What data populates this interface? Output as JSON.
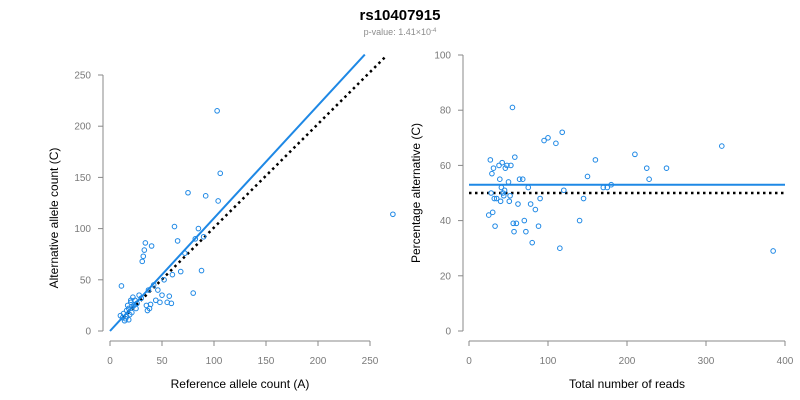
{
  "figure": {
    "title": "rs10407915",
    "subtitle_prefix": "p-value: 1.41×10",
    "subtitle_exponent": "-4"
  },
  "colors": {
    "point": "#1e88e5",
    "fit": "#1e88e5",
    "reference": "#000000"
  },
  "chart_data": [
    {
      "type": "scatter",
      "xlabel": "Reference allele count (A)",
      "ylabel": "Alternative allele count (C)",
      "xlim": [
        0,
        250
      ],
      "ylim": [
        0,
        250
      ],
      "xticks": [
        0,
        50,
        100,
        150,
        200,
        250
      ],
      "yticks": [
        0,
        50,
        100,
        150,
        200,
        250
      ],
      "points": [
        [
          10,
          15
        ],
        [
          11,
          44
        ],
        [
          12,
          13
        ],
        [
          13,
          17
        ],
        [
          14,
          10
        ],
        [
          15,
          12
        ],
        [
          16,
          14
        ],
        [
          16,
          20
        ],
        [
          17,
          25
        ],
        [
          18,
          22
        ],
        [
          18,
          11
        ],
        [
          19,
          16
        ],
        [
          20,
          28
        ],
        [
          20,
          30
        ],
        [
          21,
          18
        ],
        [
          21,
          24
        ],
        [
          22,
          33
        ],
        [
          23,
          25
        ],
        [
          24,
          30
        ],
        [
          25,
          22
        ],
        [
          26,
          27
        ],
        [
          28,
          35
        ],
        [
          30,
          32
        ],
        [
          31,
          68
        ],
        [
          32,
          73
        ],
        [
          33,
          79
        ],
        [
          34,
          86
        ],
        [
          35,
          25
        ],
        [
          36,
          20
        ],
        [
          37,
          40
        ],
        [
          38,
          22
        ],
        [
          39,
          26
        ],
        [
          40,
          83
        ],
        [
          42,
          45
        ],
        [
          44,
          30
        ],
        [
          46,
          40
        ],
        [
          48,
          28
        ],
        [
          50,
          35
        ],
        [
          52,
          50
        ],
        [
          55,
          28
        ],
        [
          57,
          34
        ],
        [
          59,
          27
        ],
        [
          60,
          55
        ],
        [
          62,
          102
        ],
        [
          65,
          88
        ],
        [
          68,
          58
        ],
        [
          72,
          76
        ],
        [
          75,
          135
        ],
        [
          80,
          37
        ],
        [
          82,
          90
        ],
        [
          85,
          100
        ],
        [
          88,
          59
        ],
        [
          90,
          92
        ],
        [
          92,
          132
        ],
        [
          103,
          215
        ],
        [
          104,
          127
        ],
        [
          106,
          154
        ],
        [
          272,
          114
        ]
      ],
      "lines": [
        {
          "name": "fit",
          "style": "solid",
          "from": [
            0,
            0
          ],
          "to": [
            245,
            270
          ]
        },
        {
          "name": "reference",
          "style": "dotted",
          "from": [
            13,
            13
          ],
          "to": [
            265,
            268
          ]
        }
      ]
    },
    {
      "type": "scatter",
      "xlabel": "Total number of reads",
      "ylabel": "Percentage alternative (C)",
      "xlim": [
        0,
        400
      ],
      "ylim": [
        0,
        100
      ],
      "xticks": [
        0,
        100,
        200,
        300,
        400
      ],
      "yticks": [
        0,
        20,
        40,
        60,
        80,
        100
      ],
      "points": [
        [
          25,
          42
        ],
        [
          27,
          62
        ],
        [
          28,
          50
        ],
        [
          29,
          57
        ],
        [
          30,
          43
        ],
        [
          31,
          59
        ],
        [
          32,
          48
        ],
        [
          33,
          38
        ],
        [
          35,
          48
        ],
        [
          38,
          60
        ],
        [
          39,
          55
        ],
        [
          40,
          47
        ],
        [
          41,
          52
        ],
        [
          42,
          61
        ],
        [
          43,
          50
        ],
        [
          44,
          49
        ],
        [
          45,
          51
        ],
        [
          46,
          59
        ],
        [
          48,
          60
        ],
        [
          50,
          54
        ],
        [
          51,
          47
        ],
        [
          52,
          49
        ],
        [
          53,
          60
        ],
        [
          55,
          81
        ],
        [
          56,
          39
        ],
        [
          57,
          36
        ],
        [
          58,
          63
        ],
        [
          60,
          39
        ],
        [
          62,
          46
        ],
        [
          64,
          55
        ],
        [
          68,
          55
        ],
        [
          70,
          40
        ],
        [
          72,
          36
        ],
        [
          75,
          52
        ],
        [
          78,
          46
        ],
        [
          80,
          32
        ],
        [
          84,
          44
        ],
        [
          88,
          38
        ],
        [
          90,
          48
        ],
        [
          95,
          69
        ],
        [
          100,
          70
        ],
        [
          110,
          68
        ],
        [
          115,
          30
        ],
        [
          118,
          72
        ],
        [
          120,
          51
        ],
        [
          140,
          40
        ],
        [
          145,
          48
        ],
        [
          150,
          56
        ],
        [
          160,
          62
        ],
        [
          170,
          52
        ],
        [
          175,
          52
        ],
        [
          180,
          53
        ],
        [
          210,
          64
        ],
        [
          225,
          59
        ],
        [
          228,
          55
        ],
        [
          250,
          59
        ],
        [
          320,
          67
        ],
        [
          385,
          29
        ]
      ],
      "lines": [
        {
          "name": "fit",
          "style": "solid",
          "from": [
            0,
            53
          ],
          "to": [
            400,
            53
          ]
        },
        {
          "name": "reference",
          "style": "dotted",
          "from": [
            0,
            50
          ],
          "to": [
            400,
            50
          ]
        }
      ]
    }
  ]
}
